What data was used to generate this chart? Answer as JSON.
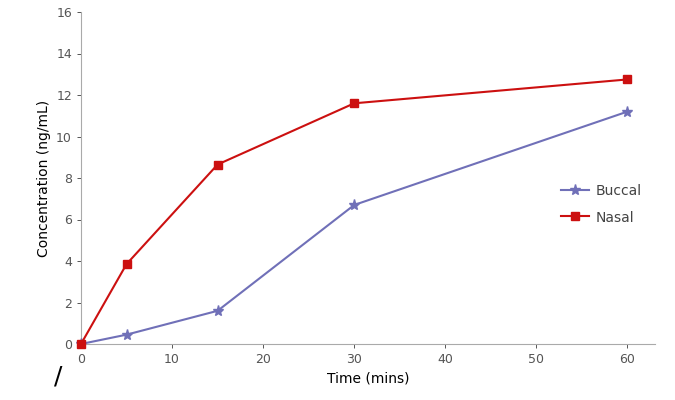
{
  "buccal_x": [
    0,
    5,
    15,
    30,
    60
  ],
  "buccal_y": [
    0,
    0.45,
    1.6,
    6.7,
    11.2
  ],
  "nasal_x": [
    0,
    5,
    15,
    30,
    60
  ],
  "nasal_y": [
    0,
    3.85,
    8.65,
    11.6,
    12.75
  ],
  "buccal_color": "#7070b8",
  "nasal_color": "#cc1010",
  "xlabel": "Time (mins)",
  "ylabel": "Concentration (ng/mL)",
  "xlim": [
    0,
    63
  ],
  "ylim": [
    0,
    16
  ],
  "xticks": [
    0,
    10,
    20,
    30,
    40,
    50,
    60
  ],
  "yticks": [
    0,
    2,
    4,
    6,
    8,
    10,
    12,
    14,
    16
  ],
  "legend_buccal": "Buccal",
  "legend_nasal": "Nasal",
  "bg_color": "#ffffff",
  "linewidth": 1.5,
  "markersize_buccal": 8,
  "markersize_nasal": 6,
  "spine_color": "#aaaaaa",
  "tick_color": "#555555",
  "label_fontsize": 10,
  "tick_fontsize": 9,
  "legend_fontsize": 10
}
